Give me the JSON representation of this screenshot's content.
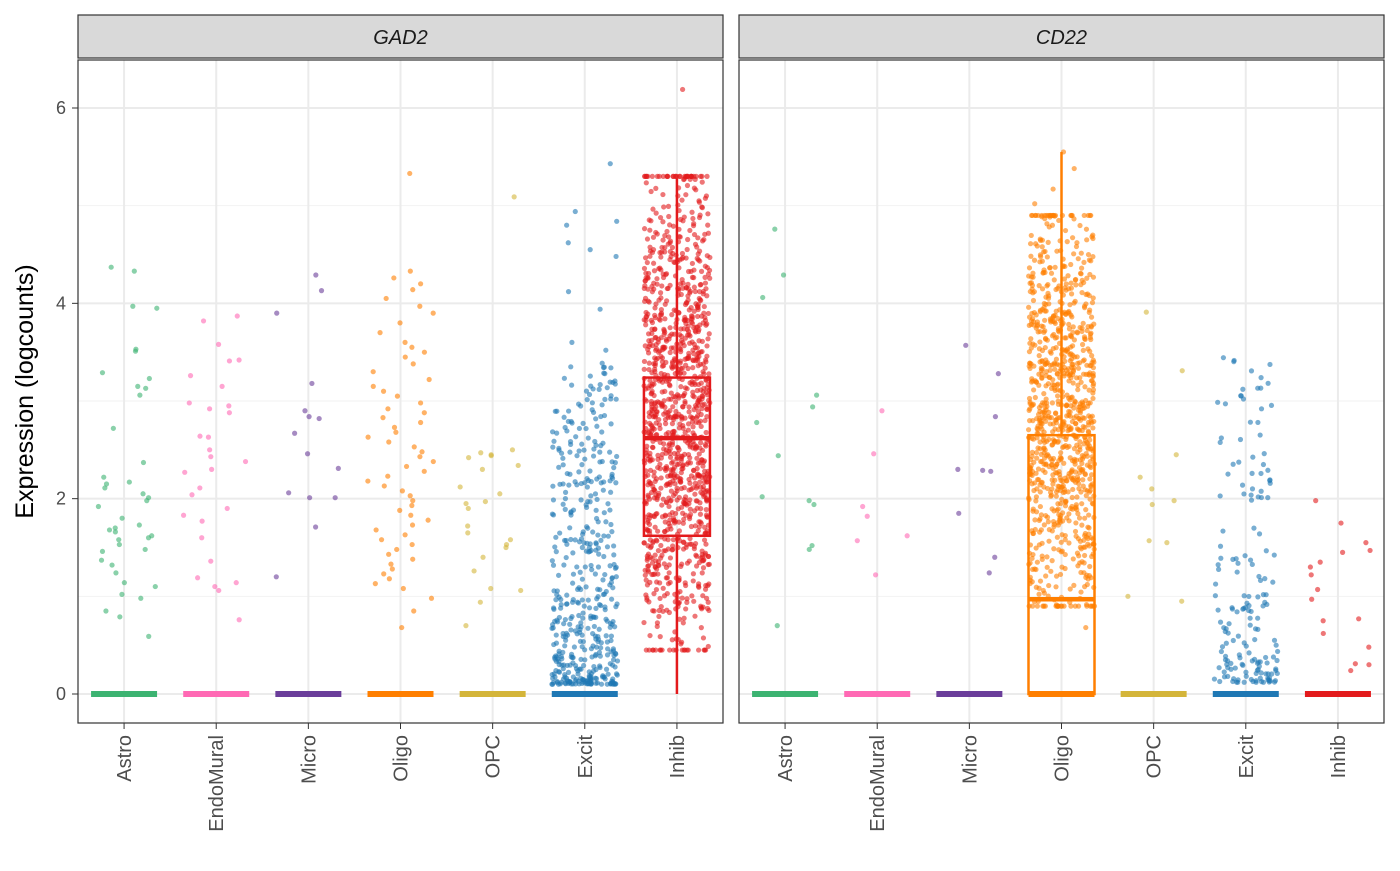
{
  "colors": {
    "Astro": "#3cb371",
    "EndoMural": "#ff69b4",
    "Micro": "#6a3d9a",
    "Oligo": "#ff7f00",
    "OPC": "#d4b53a",
    "Excit": "#1f78b4",
    "Inhib": "#e31a1c",
    "strip_fill": "#d9d9d9",
    "grid": "#ebebeb",
    "panel_border": "#333333"
  },
  "chart_data": {
    "type": "scatter",
    "subtype": "jittered-strip-with-boxplot, faceted",
    "ylabel": "Expression (logcounts)",
    "xlabel": "",
    "ylim": [
      -0.3,
      6.5
    ],
    "y_ticks": [
      "0",
      "2",
      "4",
      "6"
    ],
    "categories": [
      "Astro",
      "EndoMural",
      "Micro",
      "Oligo",
      "OPC",
      "Excit",
      "Inhib"
    ],
    "grid": true,
    "panels": [
      {
        "gene": "GAD2",
        "boxes": [
          {
            "category": "Astro",
            "q1": 0,
            "median": 0,
            "q3": 0,
            "whisker_low": 0,
            "whisker_high": 0
          },
          {
            "category": "EndoMural",
            "q1": 0,
            "median": 0,
            "q3": 0,
            "whisker_low": 0,
            "whisker_high": 0
          },
          {
            "category": "Micro",
            "q1": 0,
            "median": 0,
            "q3": 0,
            "whisker_low": 0,
            "whisker_high": 0
          },
          {
            "category": "Oligo",
            "q1": 0,
            "median": 0,
            "q3": 0,
            "whisker_low": 0,
            "whisker_high": 0
          },
          {
            "category": "OPC",
            "q1": 0,
            "median": 0,
            "q3": 0,
            "whisker_low": 0,
            "whisker_high": 0
          },
          {
            "category": "Excit",
            "q1": 0,
            "median": 0,
            "q3": 0,
            "whisker_low": 0,
            "whisker_high": 0
          },
          {
            "category": "Inhib",
            "q1": 1.62,
            "median": 2.62,
            "q3": 3.24,
            "whisker_low": 0,
            "whisker_high": 5.28
          }
        ],
        "points": {
          "Astro": [
            4.33,
            4.37,
            3.97,
            3.95,
            3.53,
            3.51,
            3.29,
            3.23,
            3.15,
            3.13,
            3.06,
            2.72,
            2.37,
            2.22,
            2.17,
            2.15,
            2.11,
            2.05,
            2.01,
            1.98,
            1.92,
            1.8,
            1.73,
            1.7,
            1.68,
            1.66,
            1.62,
            1.6,
            1.58,
            1.53,
            1.48,
            1.46,
            1.37,
            1.32,
            1.24,
            1.14,
            1.1,
            1.02,
            0.98,
            0.85,
            0.79,
            0.59
          ],
          "EndoMural": [
            3.87,
            3.82,
            3.58,
            3.42,
            3.41,
            3.26,
            3.15,
            2.98,
            2.95,
            2.92,
            2.88,
            2.64,
            2.63,
            2.5,
            2.43,
            2.38,
            2.3,
            2.27,
            2.11,
            2.04,
            1.9,
            1.83,
            1.77,
            1.6,
            1.36,
            1.19,
            1.14,
            1.1,
            1.06,
            0.76
          ],
          "Micro": [
            4.29,
            4.13,
            3.9,
            3.18,
            2.9,
            2.84,
            2.82,
            2.67,
            2.46,
            2.31,
            2.06,
            2.01,
            2.01,
            1.71,
            1.2
          ],
          "Oligo": [
            5.33,
            4.33,
            4.26,
            4.2,
            4.14,
            4.05,
            3.97,
            3.9,
            3.8,
            3.7,
            3.6,
            3.55,
            3.5,
            3.45,
            3.38,
            3.3,
            3.22,
            3.15,
            3.1,
            3.05,
            2.98,
            2.92,
            2.88,
            2.83,
            2.78,
            2.73,
            2.68,
            2.63,
            2.58,
            2.53,
            2.48,
            2.43,
            2.38,
            2.33,
            2.28,
            2.23,
            2.18,
            2.13,
            2.08,
            2.03,
            1.98,
            1.93,
            1.88,
            1.83,
            1.78,
            1.73,
            1.68,
            1.63,
            1.58,
            1.53,
            1.48,
            1.43,
            1.38,
            1.33,
            1.28,
            1.23,
            1.18,
            1.13,
            1.08,
            0.98,
            0.85,
            0.68
          ],
          "OPC": [
            5.09,
            2.5,
            2.47,
            2.45,
            2.44,
            2.42,
            2.34,
            2.3,
            2.12,
            2.05,
            1.97,
            1.95,
            1.9,
            1.72,
            1.65,
            1.58,
            1.53,
            1.5,
            1.4,
            1.26,
            1.08,
            1.06,
            0.94,
            0.7
          ],
          "Excit": [
            5.43,
            4.94,
            4.84,
            4.8,
            4.62,
            4.55,
            4.48,
            4.12,
            3.94,
            3.6,
            3.52,
            3.35
          ]
        },
        "dense_clouds": [
          {
            "category": "Excit",
            "min": 0.1,
            "max": 3.4,
            "count": 460,
            "bias": "low"
          },
          {
            "category": "Inhib",
            "min": 0.45,
            "max": 5.3,
            "count": 1150,
            "bias": "middle",
            "outliers": [
              6.19,
              5.3,
              5.1,
              4.98,
              4.95
            ]
          }
        ]
      },
      {
        "gene": "CD22",
        "boxes": [
          {
            "category": "Astro",
            "q1": 0,
            "median": 0,
            "q3": 0,
            "whisker_low": 0,
            "whisker_high": 0
          },
          {
            "category": "EndoMural",
            "q1": 0,
            "median": 0,
            "q3": 0,
            "whisker_low": 0,
            "whisker_high": 0
          },
          {
            "category": "Micro",
            "q1": 0,
            "median": 0,
            "q3": 0,
            "whisker_low": 0,
            "whisker_high": 0
          },
          {
            "category": "Oligo",
            "q1": 0,
            "median": 0.97,
            "q3": 2.65,
            "whisker_low": 0,
            "whisker_high": 5.55
          },
          {
            "category": "OPC",
            "q1": 0,
            "median": 0,
            "q3": 0,
            "whisker_low": 0,
            "whisker_high": 0
          },
          {
            "category": "Excit",
            "q1": 0,
            "median": 0,
            "q3": 0,
            "whisker_low": 0,
            "whisker_high": 0
          },
          {
            "category": "Inhib",
            "q1": 0,
            "median": 0,
            "q3": 0,
            "whisker_low": 0,
            "whisker_high": 0
          }
        ],
        "points": {
          "Astro": [
            4.76,
            4.29,
            4.06,
            3.06,
            2.94,
            2.78,
            2.44,
            2.02,
            1.98,
            1.94,
            1.52,
            1.48,
            0.7
          ],
          "EndoMural": [
            2.9,
            2.46,
            1.92,
            1.82,
            1.62,
            1.57,
            1.22
          ],
          "Micro": [
            3.57,
            3.28,
            2.84,
            2.3,
            2.29,
            2.28,
            1.85,
            1.4,
            1.24
          ],
          "OPC": [
            3.91,
            3.31,
            2.45,
            2.22,
            2.1,
            1.98,
            1.94,
            1.57,
            1.55,
            1.0,
            0.95
          ],
          "Inhib": [
            1.98,
            1.75,
            1.55,
            1.47,
            1.45,
            1.35,
            1.3,
            1.22,
            1.07,
            0.97,
            0.77,
            0.75,
            0.62,
            0.48,
            0.31,
            0.3,
            0.24
          ]
        },
        "dense_clouds": [
          {
            "category": "Oligo",
            "min": 0.9,
            "max": 4.9,
            "count": 950,
            "bias": "middle",
            "outliers": [
              5.55,
              5.38,
              5.17,
              5.02,
              0.68
            ]
          },
          {
            "category": "Excit",
            "min": 0.12,
            "max": 3.45,
            "count": 170,
            "bias": "low"
          }
        ]
      }
    ]
  }
}
